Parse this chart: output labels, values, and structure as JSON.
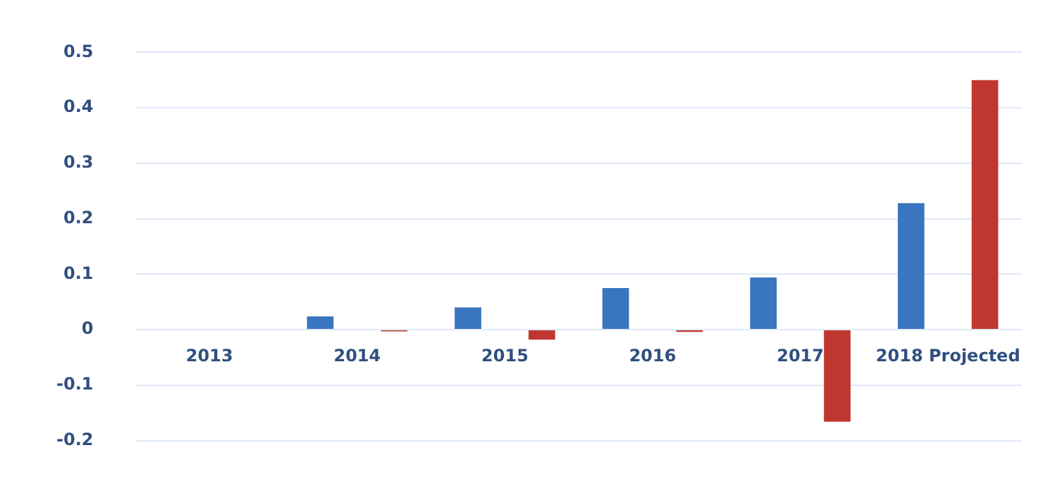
{
  "chart_data": {
    "type": "bar",
    "categories": [
      "2013",
      "2014",
      "2015",
      "2016",
      "2017",
      "2018 Projected"
    ],
    "series": [
      {
        "color": "#3a75bf",
        "values": [
          0,
          0.024,
          0.04,
          0.075,
          0.094,
          0.228
        ]
      },
      {
        "color": "#c0372f",
        "values": [
          0,
          -0.003,
          -0.018,
          -0.004,
          -0.166,
          0.45
        ]
      }
    ],
    "ylim": [
      -0.2,
      0.5
    ],
    "yticks": [
      -0.2,
      -0.1,
      0,
      0.1,
      0.2,
      0.3,
      0.4,
      0.5
    ],
    "grid": "y",
    "legend": false
  }
}
